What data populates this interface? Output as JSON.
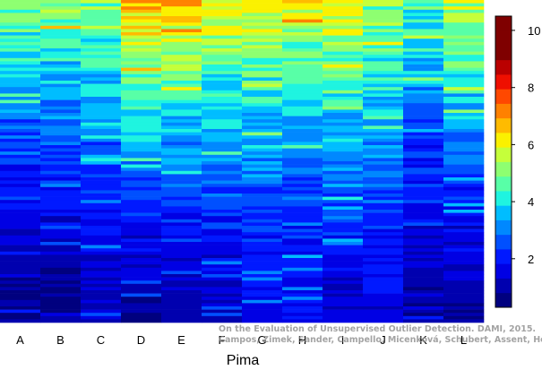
{
  "chart_data": {
    "type": "heatmap",
    "xlabel": "Pima",
    "ylabel": "",
    "categories": [
      "A",
      "B",
      "C",
      "D",
      "E",
      "F",
      "G",
      "H",
      "I",
      "J",
      "K",
      "L"
    ],
    "n_rows": 100,
    "colorbar": {
      "range": [
        0.3,
        10.5
      ],
      "ticks": [
        2,
        4,
        6,
        8,
        10
      ],
      "tick_labels": [
        "2",
        "4",
        "6",
        "8",
        "10"
      ],
      "steps": 20,
      "colors": [
        "#00007f",
        "#0000af",
        "#0000e4",
        "#0019ff",
        "#0050ff",
        "#0088ff",
        "#00bdff",
        "#1ff4e0",
        "#58ffa7",
        "#8eff71",
        "#c5ff3a",
        "#fbf100",
        "#ffbb00",
        "#ff8100",
        "#ff4800",
        "#ef0f00",
        "#ba0000",
        "#7f0000",
        "#7f0000",
        "#7f0000"
      ]
    },
    "columns": [
      {
        "name": "A",
        "top": 5.0,
        "decay": 0.8,
        "floor": 0.8
      },
      {
        "name": "B",
        "top": 5.0,
        "decay": 0.8,
        "floor": 0.8
      },
      {
        "name": "C",
        "top": 5.0,
        "decay": 0.8,
        "floor": 1.2
      },
      {
        "name": "D",
        "top": 6.6,
        "decay": 0.8,
        "floor": 1.0
      },
      {
        "name": "E",
        "top": 6.6,
        "decay": 0.8,
        "floor": 1.0
      },
      {
        "name": "F",
        "top": 6.0,
        "decay": 0.85,
        "floor": 1.2
      },
      {
        "name": "G",
        "top": 5.8,
        "decay": 0.8,
        "floor": 1.6
      },
      {
        "name": "H",
        "top": 6.0,
        "decay": 0.6,
        "floor": 1.8
      },
      {
        "name": "I",
        "top": 6.0,
        "decay": 0.8,
        "floor": 1.4
      },
      {
        "name": "J",
        "top": 5.2,
        "decay": 0.85,
        "floor": 1.6
      },
      {
        "name": "K",
        "top": 4.5,
        "decay": 0.8,
        "floor": 1.0
      },
      {
        "name": "L",
        "top": 5.6,
        "decay": 0.8,
        "floor": 1.0
      }
    ]
  },
  "credit": {
    "line1": "On the Evaluation of Unsupervised Outlier Detection. DAMI, 2015.",
    "line2": "Campos, Zimek, Sander, Campello, Micenková, Schubert, Assent, Houle"
  }
}
